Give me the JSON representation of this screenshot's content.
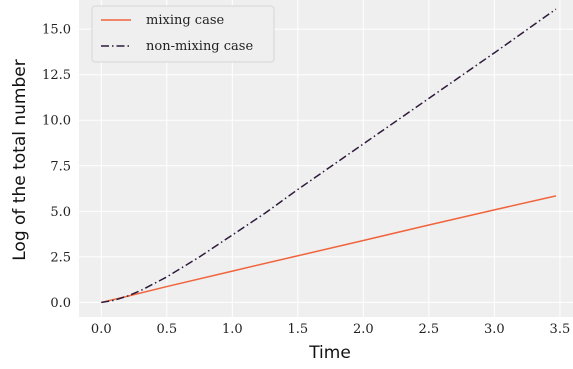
{
  "chart_data": {
    "type": "line",
    "xlabel": "Time",
    "ylabel": "Log of the total number",
    "xlim": [
      -0.17,
      3.6
    ],
    "ylim": [
      -0.8,
      16.6
    ],
    "xticks": [
      0.0,
      0.5,
      1.0,
      1.5,
      2.0,
      2.5,
      3.0,
      3.5
    ],
    "yticks": [
      0.0,
      2.5,
      5.0,
      7.5,
      10.0,
      12.5,
      15.0
    ],
    "xtick_labels": [
      "0.0",
      "0.5",
      "1.0",
      "1.5",
      "2.0",
      "2.5",
      "3.0",
      "3.5"
    ],
    "ytick_labels": [
      "0.0",
      "2.5",
      "5.0",
      "7.5",
      "10.0",
      "12.5",
      "15.0"
    ],
    "grid": true,
    "legend": "top-left",
    "colors": {
      "background": "#efefef",
      "grid": "#ffffff",
      "mixing": "#f0643c",
      "nonmixing": "#2e1a3c"
    },
    "series": [
      {
        "name": "mixing case",
        "style": "solid",
        "x": [
          0.0,
          0.1,
          0.2,
          0.5,
          1.0,
          1.5,
          2.0,
          2.5,
          3.0,
          3.47
        ],
        "y": [
          0.0,
          0.17,
          0.34,
          0.87,
          1.72,
          2.56,
          3.4,
          4.25,
          5.08,
          5.85
        ]
      },
      {
        "name": "non-mixing case",
        "style": "dashdot",
        "x": [
          0.0,
          0.1,
          0.2,
          0.3,
          0.5,
          0.75,
          1.0,
          1.25,
          1.5,
          2.0,
          2.5,
          3.0,
          3.47
        ],
        "y": [
          0.0,
          0.12,
          0.35,
          0.65,
          1.4,
          2.5,
          3.7,
          4.9,
          6.2,
          8.7,
          11.2,
          13.7,
          16.1
        ]
      }
    ]
  }
}
